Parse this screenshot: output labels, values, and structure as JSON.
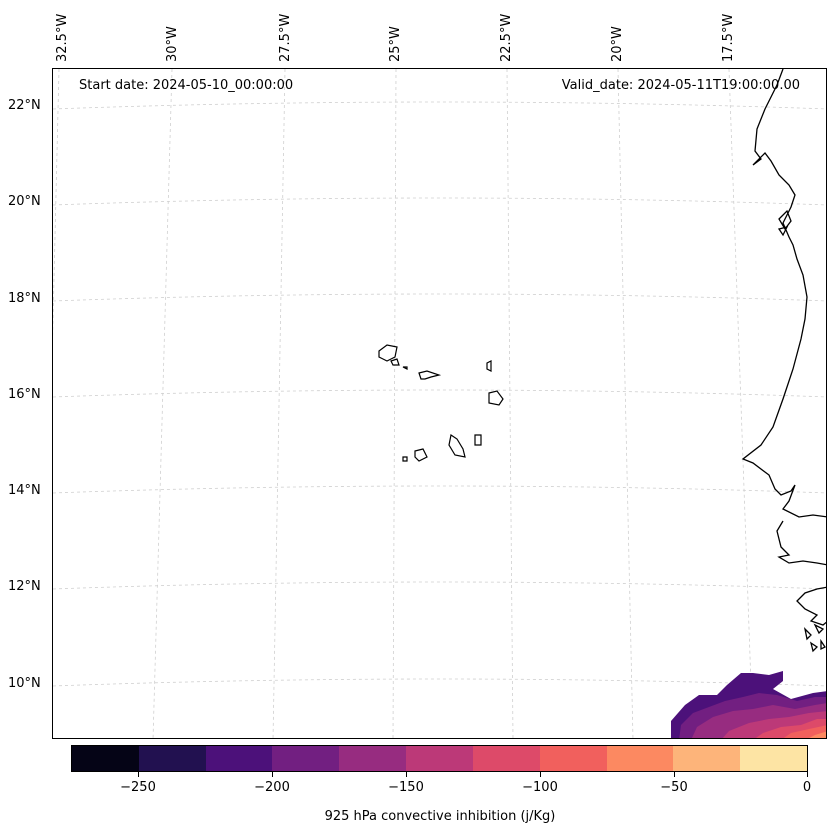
{
  "map": {
    "start_date": "Start date: 2024-05-10_00:00:00",
    "valid_date": "Valid_date: 2024-05-11T19:00:00.00",
    "longitude_labels": [
      "32.5°W",
      "30°W",
      "27.5°W",
      "25°W",
      "22.5°W",
      "20°W",
      "17.5°W"
    ],
    "latitude_labels": [
      "22°N",
      "20°N",
      "18°N",
      "16°N",
      "14°N",
      "12°N",
      "10°N"
    ],
    "colorbar": {
      "title": "925 hPa convective inhibition (j/Kg)",
      "tick_labels": [
        "−250",
        "−200",
        "−150",
        "−100",
        "−50",
        "0"
      ],
      "levels": [
        -275,
        -250,
        -225,
        -200,
        -175,
        -150,
        -125,
        -100,
        -75,
        -50,
        -25,
        0
      ],
      "colors": [
        "#050416",
        "#221150",
        "#4c117a",
        "#721f81",
        "#972c80",
        "#bc3978",
        "#dd4a69",
        "#f1605d",
        "#fc8961",
        "#fdb47a",
        "#fde4a4"
      ]
    }
  }
}
